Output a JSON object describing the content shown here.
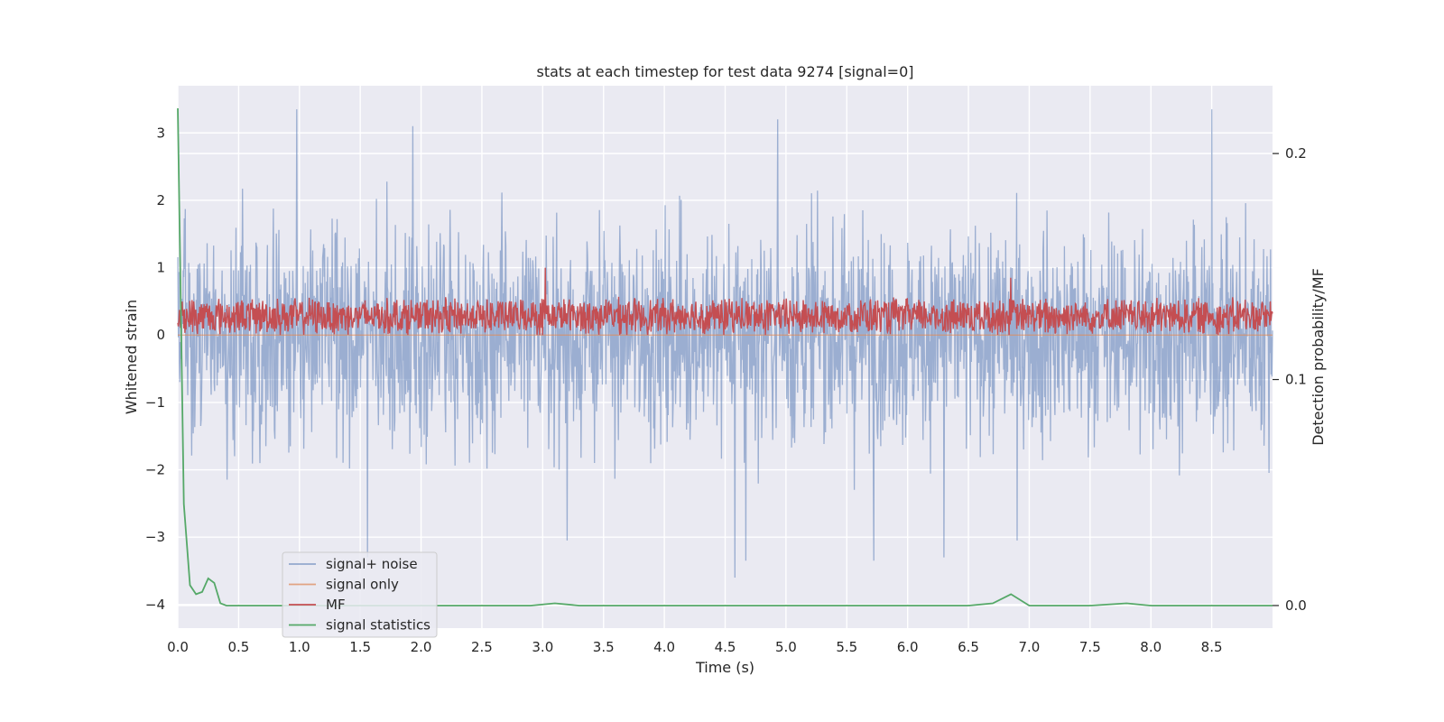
{
  "chart_data": {
    "type": "line",
    "title": "stats at each timestep for test data 9274 [signal=0]",
    "xlabel": "Time (s)",
    "ylabel": "Whitened strain",
    "y2label": "Detection probability/MF",
    "xlim": [
      0.0,
      9.0
    ],
    "ylim": [
      -4.35,
      3.7
    ],
    "y2lim": [
      -0.01,
      0.23
    ],
    "xticks": [
      "0.0",
      "0.5",
      "1.0",
      "1.5",
      "2.0",
      "2.5",
      "3.0",
      "3.5",
      "4.0",
      "4.5",
      "5.0",
      "5.5",
      "6.0",
      "6.5",
      "7.0",
      "7.5",
      "8.0",
      "8.5"
    ],
    "yticks": [
      "3",
      "2",
      "1",
      "0",
      "−1",
      "−2",
      "−3",
      "−4"
    ],
    "y2ticks": [
      "0.2",
      "0.1",
      "0.0"
    ],
    "grid": true,
    "legend_position": "lower-left",
    "series": [
      {
        "name": "signal+ noise",
        "color": "#4c72b0",
        "axis": "left",
        "style": "dense noise, approx. uniform amplitude spanning -3.6 to 3.4",
        "spikes": [
          {
            "x": 0.98,
            "y": 3.35
          },
          {
            "x": 1.93,
            "y": 3.1
          },
          {
            "x": 4.93,
            "y": 3.2
          },
          {
            "x": 8.5,
            "y": 3.35
          },
          {
            "x": 4.58,
            "y": -3.6
          },
          {
            "x": 5.72,
            "y": -3.35
          },
          {
            "x": 1.56,
            "y": -3.3
          },
          {
            "x": 4.67,
            "y": -3.35
          },
          {
            "x": 6.3,
            "y": -3.3
          },
          {
            "x": 3.2,
            "y": -3.05
          },
          {
            "x": 6.9,
            "y": -3.05
          }
        ]
      },
      {
        "name": "signal only",
        "color": "#dd8452",
        "axis": "left",
        "style": "flat at 0"
      },
      {
        "name": "MF",
        "color": "#c44e52",
        "axis": "left",
        "style": "noise band between about 0.0 and 0.7",
        "spikes": [
          {
            "x": 3.02,
            "y": 1.0
          },
          {
            "x": 6.85,
            "y": 0.85
          }
        ]
      },
      {
        "name": "signal statistics",
        "color": "#55a868",
        "axis": "right",
        "x": [
          0.0,
          0.05,
          0.1,
          0.15,
          0.2,
          0.25,
          0.3,
          0.35,
          0.4,
          0.45,
          0.5,
          1.0,
          2.0,
          2.9,
          3.1,
          3.3,
          4.0,
          5.0,
          6.0,
          6.5,
          6.7,
          6.85,
          7.0,
          7.5,
          7.8,
          8.0,
          8.5,
          9.0
        ],
        "values": [
          0.22,
          0.045,
          0.009,
          0.005,
          0.006,
          0.012,
          0.01,
          0.001,
          0.0,
          0.0,
          0.0,
          0.0,
          0.0,
          0.0,
          0.001,
          0.0,
          0.0,
          0.0,
          0.0,
          0.0,
          0.001,
          0.005,
          0.0,
          0.0,
          0.001,
          0.0,
          0.0,
          0.0
        ]
      }
    ]
  }
}
